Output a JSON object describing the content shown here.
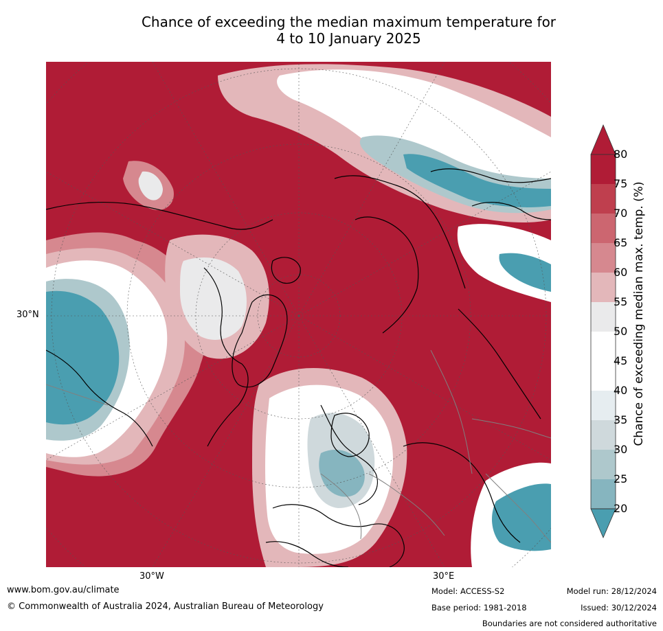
{
  "title": {
    "line1": "Chance of exceeding the median maximum temperature for",
    "line2": "4 to 10 January 2025"
  },
  "map": {
    "lat_labels": [
      "30°N"
    ],
    "lon_labels": [
      "30°W",
      "30°E"
    ],
    "colors": {
      "c80": "#b01c36",
      "c75": "#c24452",
      "c70": "#cc6670",
      "c65": "#d6888f",
      "c60": "#e3b7ba",
      "c55": "#eaeaeb",
      "c50": "#ffffff",
      "c40": "#e6edf0",
      "c35": "#cfd9dc",
      "c30": "#aec8cc",
      "c25": "#86b5bf",
      "c20": "#4a9eb0",
      "coast": "#000000",
      "border": "#808080"
    }
  },
  "colorbar": {
    "ticks": [
      "80",
      "75",
      "70",
      "65",
      "60",
      "55",
      "50",
      "45",
      "40",
      "35",
      "30",
      "25",
      "20"
    ],
    "label": "Chance of exceeding median max. temp. (%)",
    "colors": [
      "#b01c36",
      "#bf3f4e",
      "#cc6670",
      "#d6888f",
      "#e3b7ba",
      "#eaeaeb",
      "#ffffff",
      "#ffffff",
      "#e6edf0",
      "#cfd9dc",
      "#aec8cc",
      "#86b5bf",
      "#66a9b8",
      "#4a9eb0"
    ]
  },
  "footer": {
    "website": "www.bom.gov.au/climate",
    "copyright": "© Commonwealth of Australia 2024, Australian Bureau of Meteorology",
    "model": "Model: ACCESS-S2",
    "base_period": "Base period: 1981-2018",
    "model_run": "Model run: 28/12/2024",
    "issued": "Issued: 30/12/2024",
    "disclaimer": "Boundaries are not considered authoritative"
  }
}
